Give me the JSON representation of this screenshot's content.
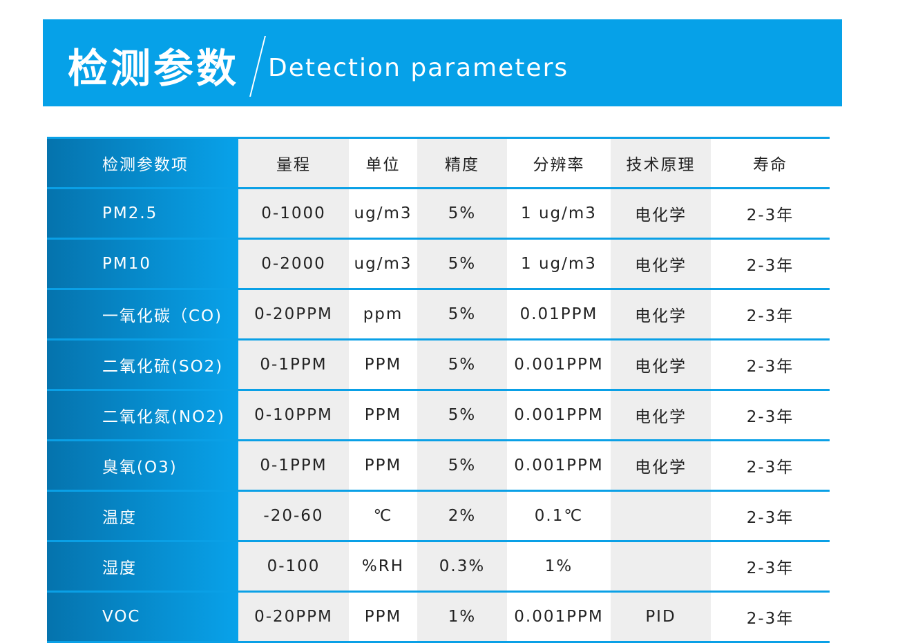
{
  "banner": {
    "title_zh": "检测参数",
    "title_en": "Detection parameters"
  },
  "table": {
    "headers": [
      "检测参数项",
      "量程",
      "单位",
      "精度",
      "分辨率",
      "技术原理",
      "寿命"
    ],
    "rows": [
      [
        "PM2.5",
        "0-1000",
        "ug/m3",
        "5%",
        "1 ug/m3",
        "电化学",
        "2-3年"
      ],
      [
        "PM10",
        "0-2000",
        "ug/m3",
        "5%",
        "1 ug/m3",
        "电化学",
        "2-3年"
      ],
      [
        "一氧化碳（CO)",
        "0-20PPM",
        "ppm",
        "5%",
        "0.01PPM",
        "电化学",
        "2-3年"
      ],
      [
        "二氧化硫(SO2)",
        "0-1PPM",
        "PPM",
        "5%",
        "0.001PPM",
        "电化学",
        "2-3年"
      ],
      [
        "二氧化氮(NO2)",
        "0-10PPM",
        "PPM",
        "5%",
        "0.001PPM",
        "电化学",
        "2-3年"
      ],
      [
        "臭氧(O3)",
        "0-1PPM",
        "PPM",
        "5%",
        "0.001PPM",
        "电化学",
        "2-3年"
      ],
      [
        "温度",
        "-20-60",
        "℃",
        "2%",
        "0.1℃",
        "",
        "2-3年"
      ],
      [
        "湿度",
        "0-100",
        "%RH",
        "0.3%",
        "1%",
        "",
        "2-3年"
      ],
      [
        "VOC",
        "0-20PPM",
        "PPM",
        "1%",
        "0.001PPM",
        "PID",
        "2-3年"
      ]
    ]
  }
}
